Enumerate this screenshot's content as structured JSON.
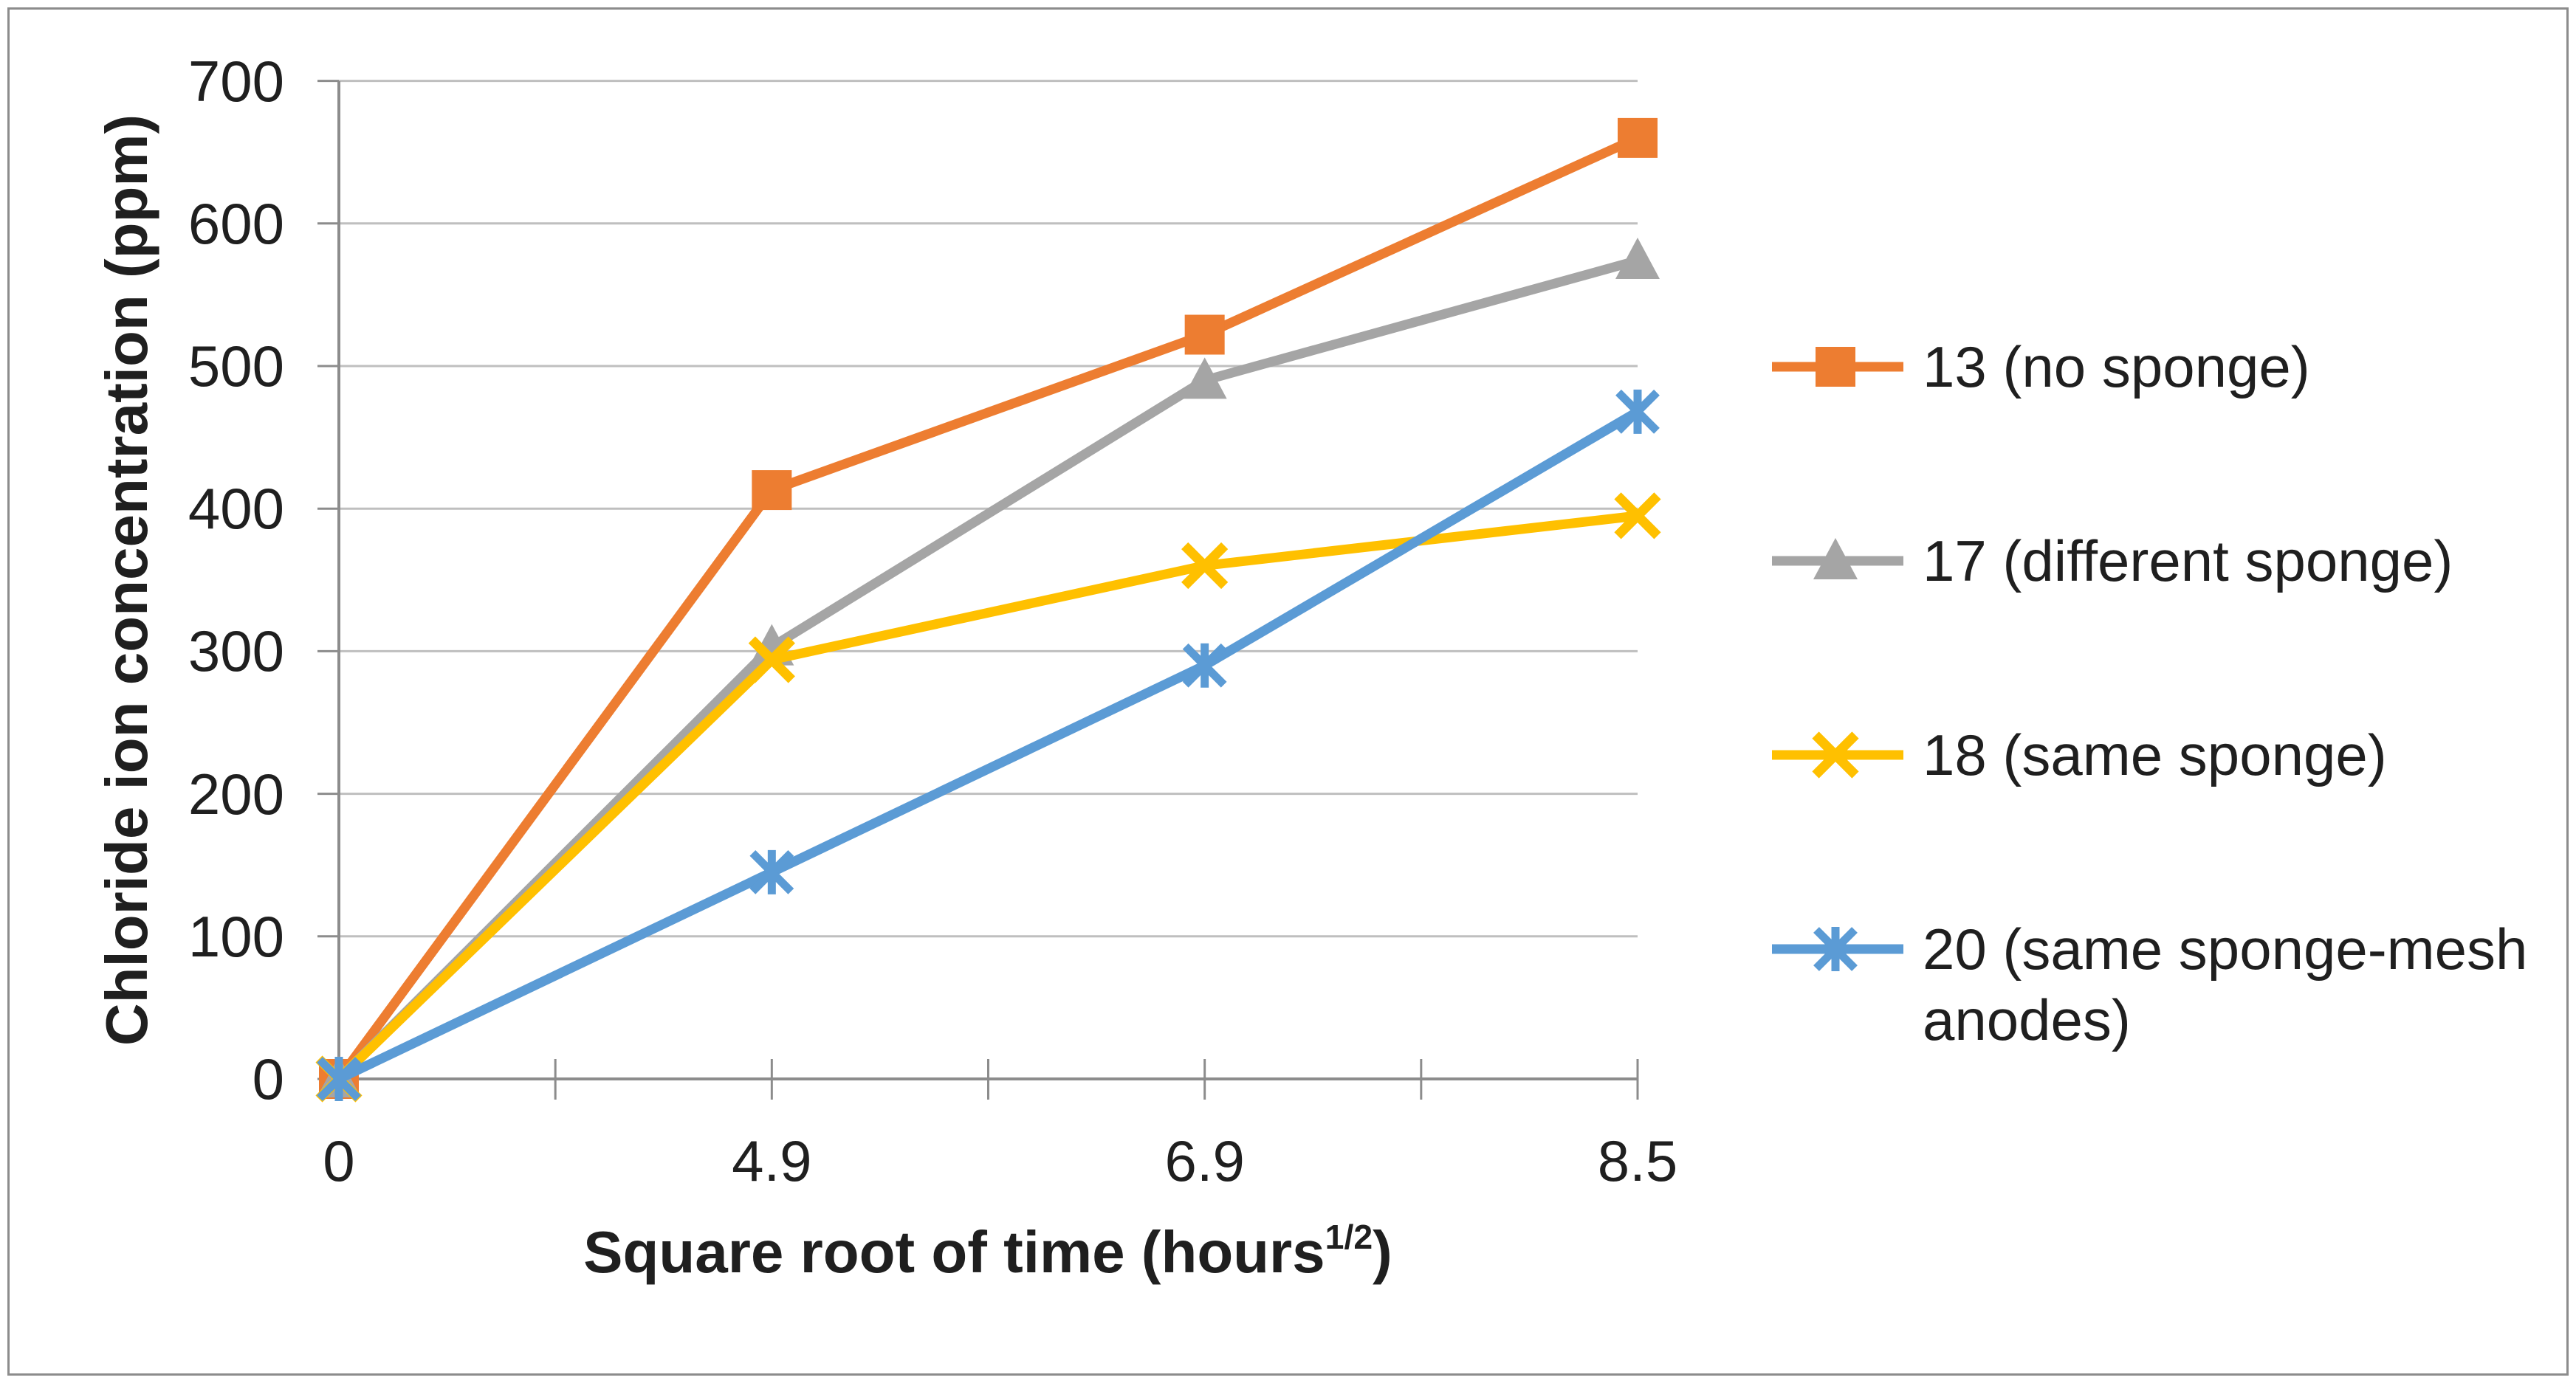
{
  "chart_data": {
    "type": "line",
    "title": "",
    "x": [
      0,
      4.9,
      6.9,
      8.5
    ],
    "x_tick_labels": [
      "0",
      "4.9",
      "6.9",
      "8.5"
    ],
    "xlabel_pre": "Square root of time (hours",
    "xlabel_sup": "1/2",
    "xlabel_post": ")",
    "ylabel": "Chloride ion concentration (ppm)",
    "ylim": [
      0,
      700
    ],
    "yticks": [
      0,
      100,
      200,
      300,
      400,
      500,
      600,
      700
    ],
    "grid": "horizontal",
    "legend_position": "right",
    "series": [
      {
        "name": "13 (no sponge)",
        "marker": "square",
        "color": "#ED7D31",
        "values": [
          0,
          413,
          522,
          660
        ]
      },
      {
        "name": "17 (different sponge)",
        "marker": "triangle",
        "color": "#A5A5A5",
        "values": [
          0,
          303,
          490,
          574
        ]
      },
      {
        "name": "18 (same sponge)",
        "marker": "x",
        "color": "#FFC000",
        "values": [
          0,
          294,
          360,
          395
        ]
      },
      {
        "name": "20 (same sponge-mesh anodes)",
        "marker": "star",
        "color": "#5B9BD5",
        "values": [
          0,
          145,
          290,
          468
        ]
      }
    ]
  },
  "colors": {
    "background": "#FFFFFF",
    "gridline": "#BFBFBF",
    "axis": "#8C8C8C",
    "text": "#1F1F1F",
    "border": "#8C8C8C"
  }
}
